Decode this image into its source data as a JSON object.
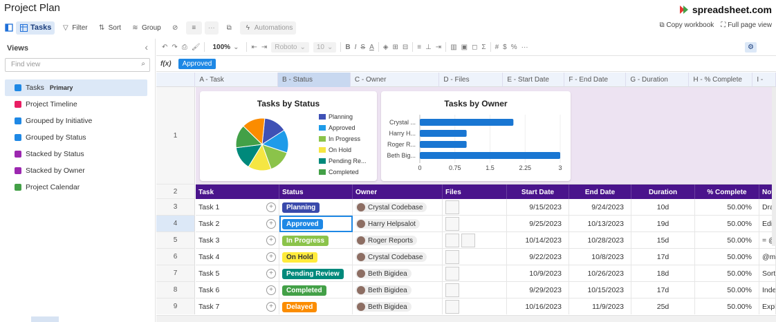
{
  "app": {
    "title": "Project Plan",
    "brand": "spreadsheet.com"
  },
  "topbar": {
    "tasks": "Tasks",
    "filter": "Filter",
    "sort": "Sort",
    "group": "Group",
    "more": "···",
    "automations": "Automations",
    "copy_workbook": "Copy workbook",
    "full_page_view": "Full page view"
  },
  "sidebar": {
    "title": "Views",
    "find_placeholder": "Find view",
    "items": [
      {
        "label": "Tasks",
        "tag": "Primary",
        "color": "#1e88e5"
      },
      {
        "label": "Project Timeline",
        "tag": "",
        "color": "#e91e63"
      },
      {
        "label": "Grouped by Initiative",
        "tag": "",
        "color": "#1e88e5"
      },
      {
        "label": "Grouped by Status",
        "tag": "",
        "color": "#1e88e5"
      },
      {
        "label": "Stacked by Status",
        "tag": "",
        "color": "#9c27b0"
      },
      {
        "label": "Stacked by Owner",
        "tag": "",
        "color": "#9c27b0"
      },
      {
        "label": "Project Calendar",
        "tag": "",
        "color": "#43a047"
      }
    ]
  },
  "toolbar2": {
    "zoom": "100%",
    "font": "Roboto",
    "size": "10"
  },
  "formula": {
    "fx": "f(x)",
    "value": "Approved"
  },
  "columns": [
    "A - Task",
    "B - Status",
    "C - Owner",
    "D - Files",
    "E - Start Date",
    "F - End Date",
    "G - Duration",
    "H - % Complete",
    "I -"
  ],
  "row_numbers": [
    "1",
    "2",
    "3",
    "4",
    "5",
    "6",
    "7",
    "8",
    "9"
  ],
  "header_row": [
    "Task",
    "Status",
    "Owner",
    "Files",
    "Start Date",
    "End Date",
    "Duration",
    "% Complete",
    "Note"
  ],
  "rows": [
    {
      "task": "Task 1",
      "status": "Planning",
      "status_color": "#3949ab",
      "owner": "Crystal Codebase",
      "start": "9/15/2023",
      "end": "9/24/2023",
      "duration": "10d",
      "pct": "50.00%",
      "note": "Drag"
    },
    {
      "task": "Task 2",
      "status": "Approved",
      "status_color": "#1e88e5",
      "owner": "Harry Helpsalot",
      "start": "9/25/2023",
      "end": "10/13/2023",
      "duration": "19d",
      "pct": "50.00%",
      "note": "Edit c"
    },
    {
      "task": "Task 3",
      "status": "In Progress",
      "status_color": "#8bc34a",
      "owner": "Roger Reports",
      "start": "10/14/2023",
      "end": "10/28/2023",
      "duration": "15d",
      "pct": "50.00%",
      "note": "= @"
    },
    {
      "task": "Task 4",
      "status": "On Hold",
      "status_color": "#ffeb3b",
      "owner": "Crystal Codebase",
      "start": "9/22/2023",
      "end": "10/8/2023",
      "duration": "17d",
      "pct": "50.00%",
      "note": "@me"
    },
    {
      "task": "Task 5",
      "status": "Pending Review",
      "status_color": "#00897b",
      "owner": "Beth Bigidea",
      "start": "10/9/2023",
      "end": "10/26/2023",
      "duration": "18d",
      "pct": "50.00%",
      "note": "Sort,"
    },
    {
      "task": "Task 6",
      "status": "Completed",
      "status_color": "#43a047",
      "owner": "Beth Bigidea",
      "start": "9/29/2023",
      "end": "10/15/2023",
      "duration": "17d",
      "pct": "50.00%",
      "note": "Inder"
    },
    {
      "task": "Task 7",
      "status": "Delayed",
      "status_color": "#fb8c00",
      "owner": "Beth Bigidea",
      "start": "10/16/2023",
      "end": "11/9/2023",
      "duration": "25d",
      "pct": "50.00%",
      "note": "Explo owne"
    }
  ],
  "chart_data": [
    {
      "type": "pie",
      "title": "Tasks by Status",
      "categories": [
        "Planning",
        "Approved",
        "In Progress",
        "On Hold",
        "Pending Re...",
        "Completed",
        "Delayed"
      ],
      "legend_visible": [
        "Planning",
        "Approved",
        "In Progress",
        "On Hold",
        "Pending Re...",
        "Completed"
      ],
      "values": [
        1,
        1,
        1,
        1,
        1,
        1,
        1
      ],
      "colors": [
        "#3f51b5",
        "#1e9be9",
        "#8bc34a",
        "#f5e642",
        "#00897b",
        "#43a047",
        "#fb8c00"
      ],
      "legend": "right"
    },
    {
      "type": "bar",
      "orientation": "horizontal",
      "title": "Tasks by Owner",
      "categories": [
        "Crystal ...",
        "Harry H...",
        "Roger R...",
        "Beth Big..."
      ],
      "values": [
        2,
        1,
        1,
        3
      ],
      "xlim": [
        0,
        3
      ],
      "xticks": [
        "0",
        "0.75",
        "1.5",
        "2.25",
        "3"
      ],
      "color": "#1976d2"
    }
  ]
}
